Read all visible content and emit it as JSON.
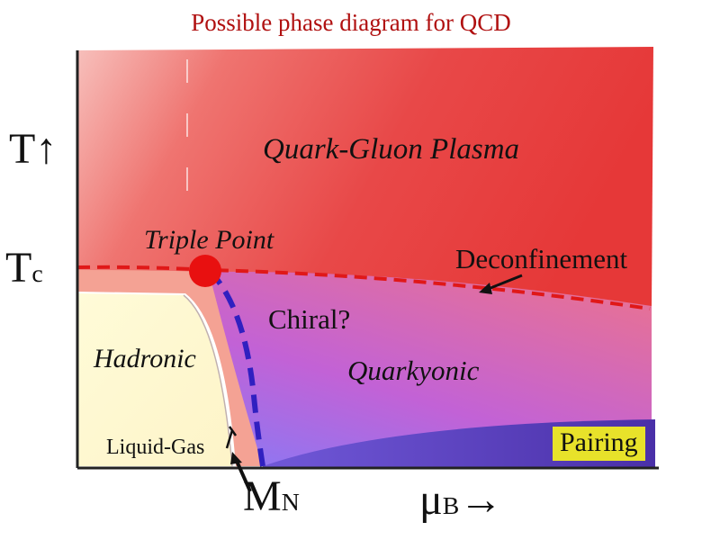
{
  "title": "Possible phase diagram for QCD",
  "regions": {
    "qgp": "Quark-Gluon Plasma",
    "triple_point": "Triple Point",
    "hadronic": "Hadronic",
    "quarkyonic": "Quarkyonic"
  },
  "transitions": {
    "deconfinement": "Deconfinement",
    "chiral": "Chiral?",
    "liquid_gas": "Liquid-Gas",
    "pairing": "Pairing"
  },
  "axes": {
    "temperature": {
      "symbol": "T",
      "arrow": "↑"
    },
    "critical_temperature": {
      "symbol": "T",
      "subscript": "c"
    },
    "nucleon_mass": {
      "symbol": "M",
      "subscript": "N"
    },
    "baryon_chemical_potential": {
      "symbol": "μ",
      "subscript": "B",
      "arrow": "→"
    }
  },
  "colors": {
    "title": "#b01010",
    "qgp": "#e84040",
    "hadronic": "#fffbd6",
    "quarkyonic": "#c060d0",
    "pairing_region": "#5038b0",
    "deconfinement_line": "#e01818",
    "chiral_line": "#3020c0",
    "triple_point": "#e81010",
    "pairing_label": "#e8e22a"
  }
}
